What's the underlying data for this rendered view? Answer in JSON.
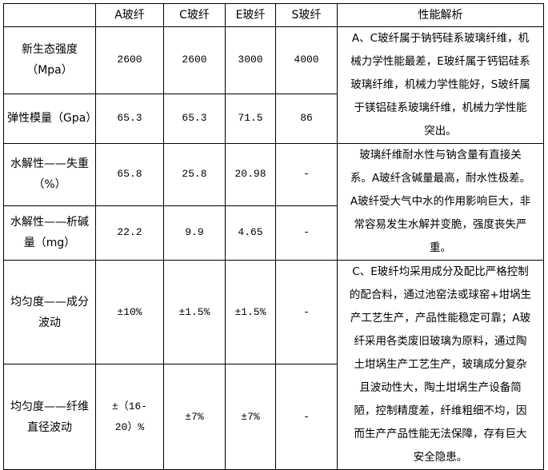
{
  "table": {
    "headers": [
      "",
      "A玻纤",
      "C玻纤",
      "E玻纤",
      "S玻纤",
      "性能解析"
    ],
    "rows": [
      {
        "label": "新生态强度（Mpa）",
        "values": [
          "2600",
          "2600",
          "3000",
          "4000"
        ]
      },
      {
        "label": "弹性模量（Gpa）",
        "values": [
          "65.3",
          "65.3",
          "71.5",
          "86"
        ]
      },
      {
        "label": "水解性——失重（%）",
        "values": [
          "65.8",
          "25.8",
          "20.98",
          "-"
        ]
      },
      {
        "label": "水解性——析碱量（mg）",
        "values": [
          "22.2",
          "9.9",
          "4.65",
          "-"
        ]
      },
      {
        "label": "均匀度——成分波动",
        "values": [
          "±10%",
          "±1.5%",
          "±1.5%",
          "-"
        ]
      },
      {
        "label": "均匀度——纤维直径波动",
        "values": [
          "±（16-20）%",
          "±7%",
          "±7%",
          "-"
        ]
      }
    ],
    "analysis": [
      [
        "A、C玻纤属于钠钙硅系玻璃纤维，机",
        "械力学性能最差，E玻纤属于钙铝硅系",
        "玻璃纤维，机械力学性能好，S玻纤属",
        "于镁铝硅系玻璃纤维，机械力学性能",
        "突出。"
      ],
      [
        "玻璃纤维耐水性与钠含量有直接关",
        "系。A玻纤含碱量最高，耐水性极差。",
        "A玻纤受大气中水的作用影响巨大，非",
        "常容易发生水解并变脆，强度丧失严",
        "重。"
      ],
      [
        "C、E玻纤均采用成分及配比严格控制",
        "的配合料，通过池窑法或球窑+坩埚生",
        "产工艺生产，产品性能稳定可靠；A玻",
        "纤采用各类废旧玻璃为原料，通过陶",
        "土坩埚生产工艺生产，玻璃成分复杂",
        "且波动性大，陶土坩埚生产设备简",
        "陋，控制精度差，纤维粗细不均，因",
        "而生产产品性能无法保障，存有巨大",
        "安全隐患。"
      ]
    ]
  }
}
